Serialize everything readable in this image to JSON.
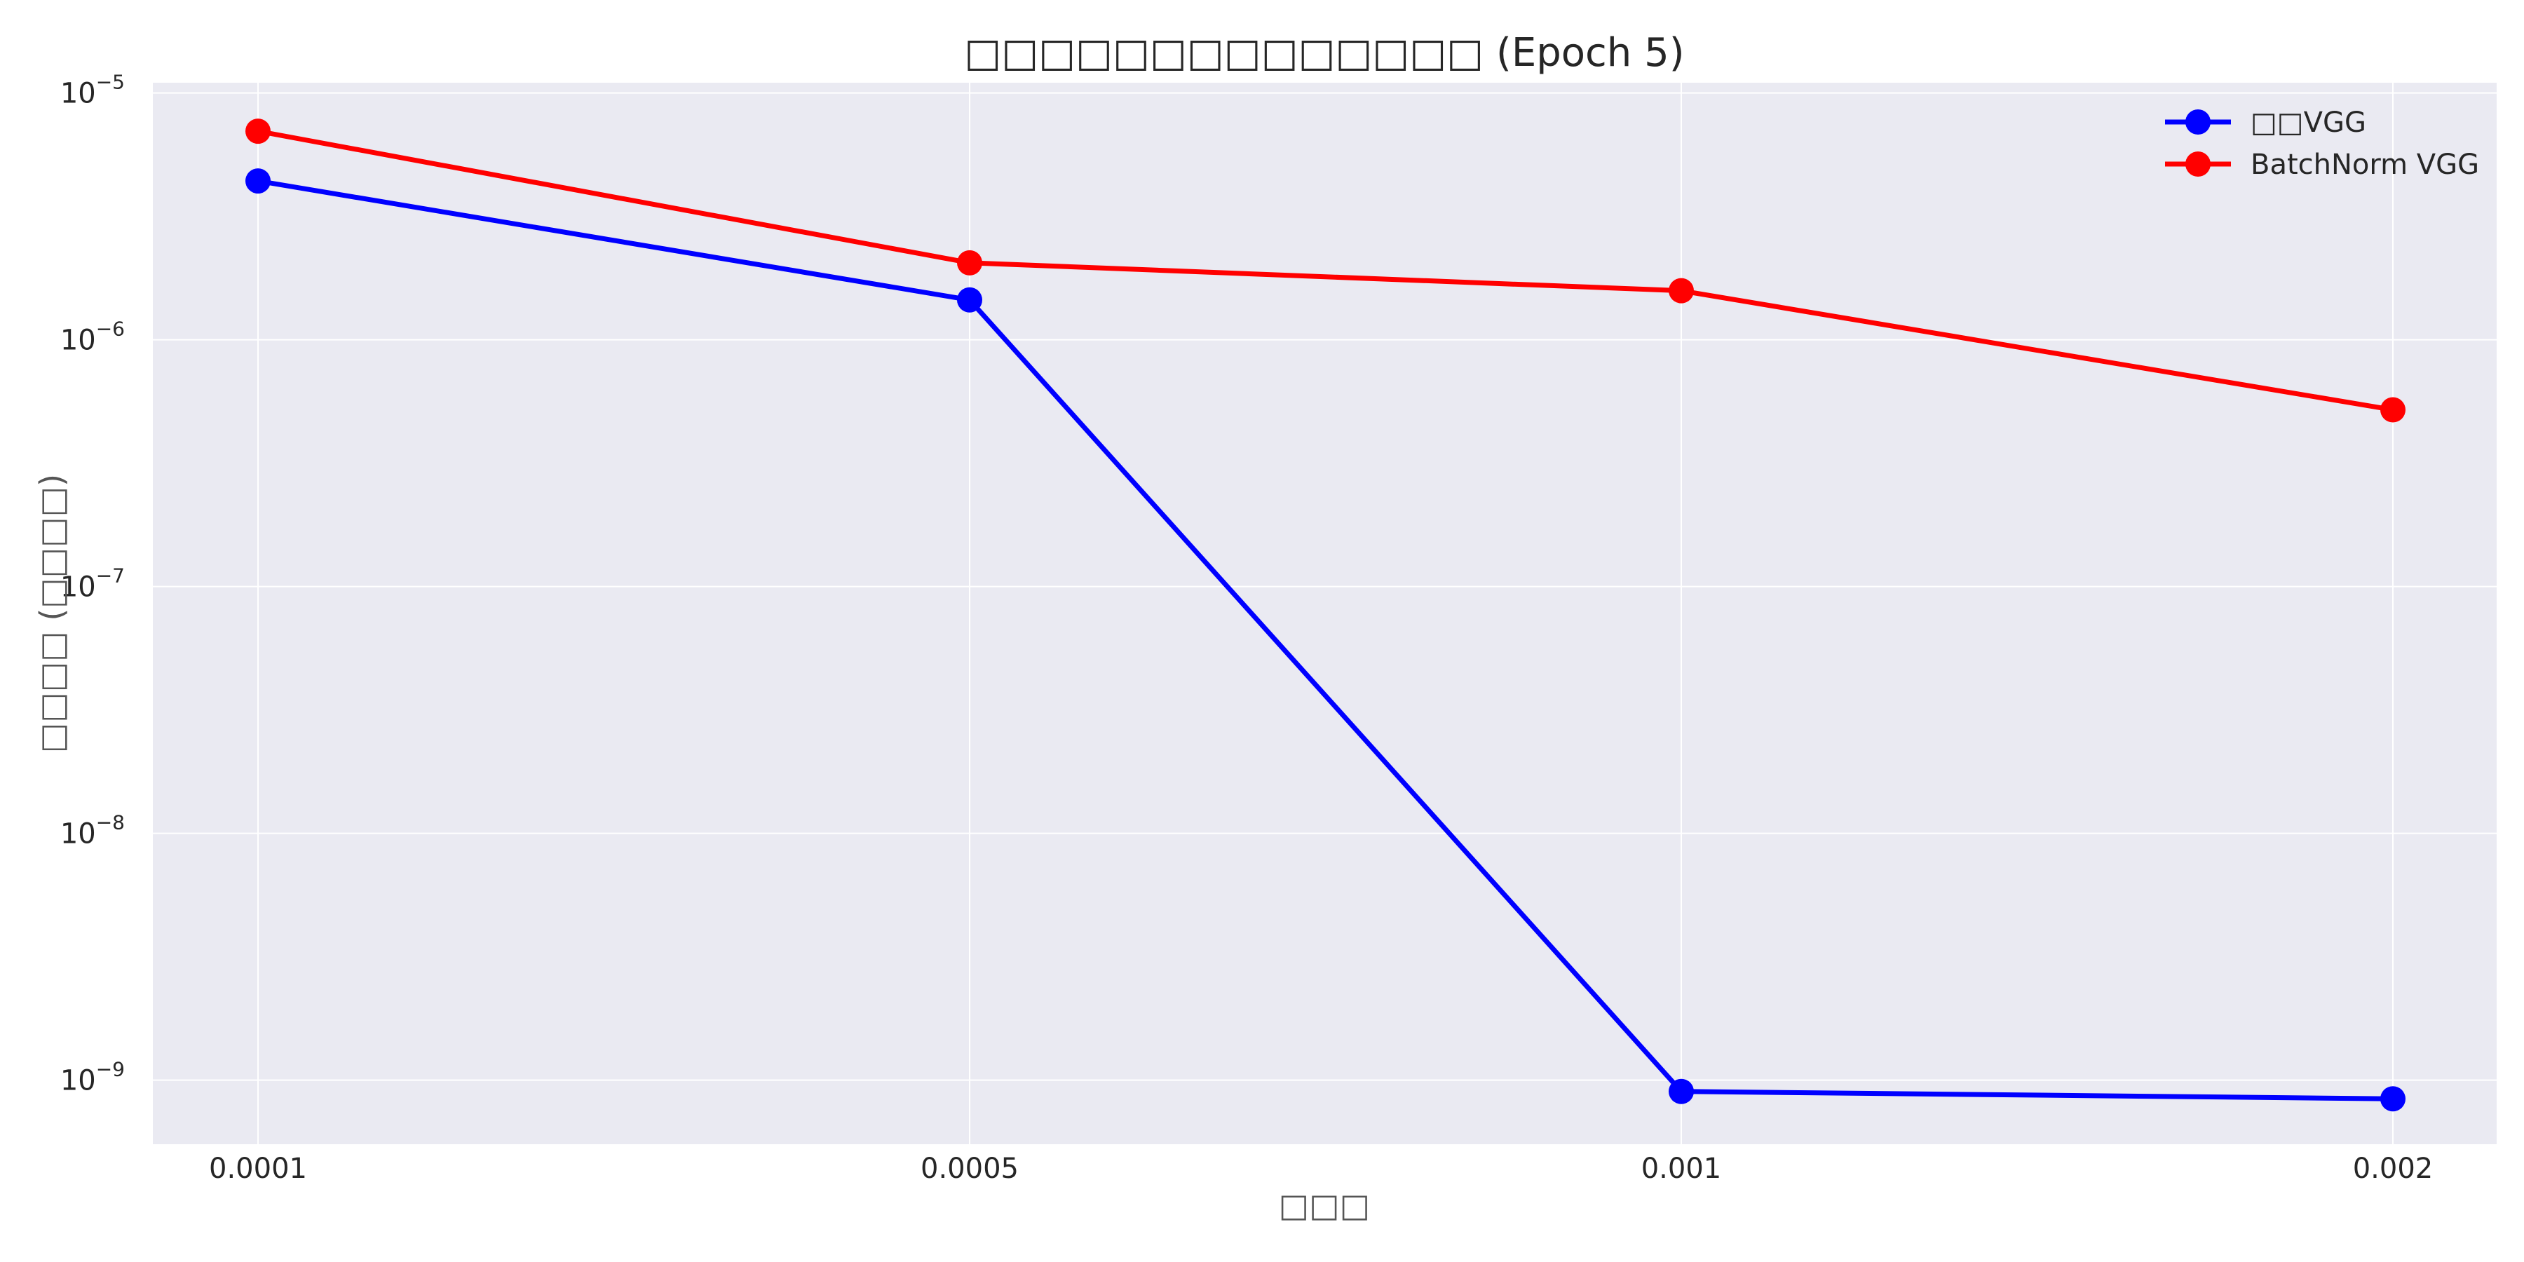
{
  "colors": {
    "plot_background": "#eaeaf2",
    "grid": "#ffffff",
    "series_1": "#0000ff",
    "series_2": "#ff0000"
  },
  "chart_data": {
    "type": "line",
    "title": "□□□□□□□□□□□□□□ (Epoch 5)",
    "xlabel": "□□□",
    "ylabel": "□□□□ (□□□□)",
    "x": [
      "0.0001",
      "0.0005",
      "0.001",
      "0.002"
    ],
    "x_scale": "categorical",
    "y_scale": "log",
    "ylim": [
      5.5e-10,
      1.1e-05
    ],
    "y_ticks": [
      {
        "value": 1e-09,
        "base": "10",
        "exp": "−9"
      },
      {
        "value": 1e-08,
        "base": "10",
        "exp": "−8"
      },
      {
        "value": 1e-07,
        "base": "10",
        "exp": "−7"
      },
      {
        "value": 1e-06,
        "base": "10",
        "exp": "−6"
      },
      {
        "value": 1e-05,
        "base": "10",
        "exp": "−5"
      }
    ],
    "grid": true,
    "legend_position": "top-right",
    "series": [
      {
        "name": "□□VGG",
        "color": "#0000ff",
        "marker": "circle",
        "values": [
          4.4e-06,
          1.45e-06,
          9e-10,
          8.4e-10
        ]
      },
      {
        "name": "BatchNorm VGG",
        "color": "#ff0000",
        "marker": "circle",
        "values": [
          7e-06,
          2.05e-06,
          1.58e-06,
          5.2e-07
        ]
      }
    ]
  }
}
